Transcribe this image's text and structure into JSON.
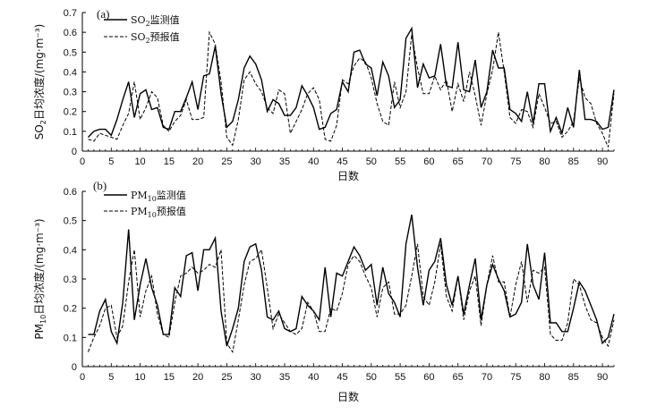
{
  "chart_data": [
    {
      "type": "line",
      "panel_label": "(a)",
      "ylabel": "SO2日均浓度/(mg·m⁻³)",
      "xlabel": "日数",
      "xlim": [
        0,
        92
      ],
      "ylim": [
        0,
        0.7
      ],
      "xticks": [
        0,
        5,
        10,
        15,
        20,
        25,
        30,
        35,
        40,
        45,
        50,
        55,
        60,
        65,
        70,
        75,
        80,
        85,
        90
      ],
      "yticks": [
        0,
        0.1,
        0.2,
        0.3,
        0.4,
        0.5,
        0.6,
        0.7
      ],
      "ytick_labels": [
        "0",
        "0.1",
        "0.2",
        "0.3",
        "0.4",
        "0.5",
        "0.6",
        "0.7"
      ],
      "legend_position": "top-left",
      "series": [
        {
          "name": "SO2监测值",
          "style": "solid",
          "color": "#000000",
          "x": [
            1,
            2,
            3,
            4,
            5,
            6,
            7,
            8,
            9,
            10,
            11,
            12,
            13,
            14,
            15,
            16,
            17,
            18,
            19,
            20,
            21,
            22,
            23,
            24,
            25,
            26,
            27,
            28,
            29,
            30,
            31,
            32,
            33,
            34,
            35,
            36,
            37,
            38,
            39,
            40,
            41,
            42,
            43,
            44,
            45,
            46,
            47,
            48,
            49,
            50,
            51,
            52,
            53,
            54,
            55,
            56,
            57,
            58,
            59,
            60,
            61,
            62,
            63,
            64,
            65,
            66,
            67,
            68,
            69,
            70,
            71,
            72,
            73,
            74,
            75,
            76,
            77,
            78,
            79,
            80,
            81,
            82,
            83,
            84,
            85,
            86,
            87,
            88,
            89,
            90,
            91,
            92
          ],
          "y": [
            0.07,
            0.1,
            0.11,
            0.11,
            0.08,
            0.16,
            0.26,
            0.35,
            0.17,
            0.29,
            0.31,
            0.21,
            0.22,
            0.12,
            0.11,
            0.2,
            0.2,
            0.27,
            0.35,
            0.21,
            0.38,
            0.39,
            0.53,
            0.29,
            0.12,
            0.15,
            0.26,
            0.42,
            0.48,
            0.44,
            0.36,
            0.2,
            0.26,
            0.24,
            0.18,
            0.18,
            0.22,
            0.33,
            0.28,
            0.22,
            0.11,
            0.12,
            0.19,
            0.21,
            0.35,
            0.3,
            0.5,
            0.51,
            0.44,
            0.42,
            0.28,
            0.45,
            0.38,
            0.22,
            0.26,
            0.57,
            0.62,
            0.32,
            0.44,
            0.37,
            0.38,
            0.54,
            0.33,
            0.32,
            0.55,
            0.31,
            0.3,
            0.46,
            0.22,
            0.3,
            0.51,
            0.42,
            0.42,
            0.21,
            0.19,
            0.15,
            0.3,
            0.14,
            0.34,
            0.34,
            0.1,
            0.17,
            0.09,
            0.22,
            0.12,
            0.41,
            0.16,
            0.16,
            0.15,
            0.11,
            0.12,
            0.31
          ]
        },
        {
          "name": "SO2预报值",
          "style": "dashed",
          "color": "#000000",
          "x": [
            1,
            2,
            3,
            4,
            5,
            6,
            7,
            8,
            9,
            10,
            11,
            12,
            13,
            14,
            15,
            16,
            17,
            18,
            19,
            20,
            21,
            22,
            23,
            24,
            25,
            26,
            27,
            28,
            29,
            30,
            31,
            32,
            33,
            34,
            35,
            36,
            37,
            38,
            39,
            40,
            41,
            42,
            43,
            44,
            45,
            46,
            47,
            48,
            49,
            50,
            51,
            52,
            53,
            54,
            55,
            56,
            57,
            58,
            59,
            60,
            61,
            62,
            63,
            64,
            65,
            66,
            67,
            68,
            69,
            70,
            71,
            72,
            73,
            74,
            75,
            76,
            77,
            78,
            79,
            80,
            81,
            82,
            83,
            84,
            85,
            86,
            87,
            88,
            89,
            90,
            91,
            92
          ],
          "y": [
            0.06,
            0.05,
            0.09,
            0.08,
            0.07,
            0.06,
            0.13,
            0.19,
            0.35,
            0.16,
            0.22,
            0.3,
            0.27,
            0.13,
            0.1,
            0.15,
            0.18,
            0.26,
            0.16,
            0.16,
            0.17,
            0.6,
            0.54,
            0.35,
            0.07,
            0.03,
            0.16,
            0.36,
            0.4,
            0.34,
            0.3,
            0.22,
            0.19,
            0.31,
            0.29,
            0.09,
            0.15,
            0.21,
            0.29,
            0.32,
            0.26,
            0.06,
            0.05,
            0.13,
            0.36,
            0.34,
            0.43,
            0.47,
            0.45,
            0.37,
            0.24,
            0.15,
            0.13,
            0.35,
            0.22,
            0.3,
            0.59,
            0.42,
            0.29,
            0.29,
            0.38,
            0.31,
            0.36,
            0.2,
            0.34,
            0.25,
            0.4,
            0.28,
            0.13,
            0.29,
            0.41,
            0.6,
            0.4,
            0.17,
            0.14,
            0.21,
            0.2,
            0.12,
            0.29,
            0.22,
            0.14,
            0.15,
            0.07,
            0.1,
            0.15,
            0.37,
            0.27,
            0.24,
            0.14,
            0.09,
            0.02,
            0.29
          ]
        }
      ]
    },
    {
      "type": "line",
      "panel_label": "(b)",
      "ylabel": "PM10日均浓度/(mg·m⁻³)",
      "xlabel": "日数",
      "xlim": [
        0,
        92
      ],
      "ylim": [
        0,
        0.6
      ],
      "xticks": [
        0,
        5,
        10,
        15,
        20,
        25,
        30,
        35,
        40,
        45,
        50,
        55,
        60,
        65,
        70,
        75,
        80,
        85,
        90
      ],
      "yticks": [
        0,
        0.1,
        0.2,
        0.3,
        0.4,
        0.5,
        0.6
      ],
      "ytick_labels": [
        "0",
        "0.1",
        "0.2",
        "0.3",
        "0.4",
        "0.5",
        "0.6"
      ],
      "legend_position": "top-left",
      "series": [
        {
          "name": "PM10监测值",
          "style": "solid",
          "color": "#000000",
          "x": [
            1,
            2,
            3,
            4,
            5,
            6,
            7,
            8,
            9,
            10,
            11,
            12,
            13,
            14,
            15,
            16,
            17,
            18,
            19,
            20,
            21,
            22,
            23,
            24,
            25,
            26,
            27,
            28,
            29,
            30,
            31,
            32,
            33,
            34,
            35,
            36,
            37,
            38,
            39,
            40,
            41,
            42,
            43,
            44,
            45,
            46,
            47,
            48,
            49,
            50,
            51,
            52,
            53,
            54,
            55,
            56,
            57,
            58,
            59,
            60,
            61,
            62,
            63,
            64,
            65,
            66,
            67,
            68,
            69,
            70,
            71,
            72,
            73,
            74,
            75,
            76,
            77,
            78,
            79,
            80,
            81,
            82,
            83,
            84,
            85,
            86,
            87,
            88,
            89,
            90,
            91,
            92
          ],
          "y": [
            0.11,
            0.11,
            0.19,
            0.23,
            0.12,
            0.08,
            0.22,
            0.47,
            0.16,
            0.28,
            0.37,
            0.27,
            0.21,
            0.11,
            0.11,
            0.27,
            0.24,
            0.38,
            0.39,
            0.26,
            0.4,
            0.4,
            0.44,
            0.19,
            0.07,
            0.13,
            0.2,
            0.36,
            0.41,
            0.42,
            0.33,
            0.17,
            0.16,
            0.19,
            0.13,
            0.12,
            0.13,
            0.24,
            0.21,
            0.19,
            0.16,
            0.34,
            0.17,
            0.32,
            0.31,
            0.36,
            0.41,
            0.38,
            0.33,
            0.35,
            0.21,
            0.34,
            0.25,
            0.22,
            0.17,
            0.42,
            0.52,
            0.34,
            0.21,
            0.33,
            0.36,
            0.44,
            0.28,
            0.21,
            0.31,
            0.18,
            0.28,
            0.37,
            0.16,
            0.28,
            0.35,
            0.3,
            0.26,
            0.17,
            0.18,
            0.22,
            0.42,
            0.28,
            0.23,
            0.39,
            0.15,
            0.15,
            0.12,
            0.12,
            0.2,
            0.29,
            0.26,
            0.21,
            0.16,
            0.08,
            0.1,
            0.18
          ]
        },
        {
          "name": "PM10预报值",
          "style": "dashed",
          "color": "#000000",
          "x": [
            1,
            2,
            3,
            4,
            5,
            6,
            7,
            8,
            9,
            10,
            11,
            12,
            13,
            14,
            15,
            16,
            17,
            18,
            19,
            20,
            21,
            22,
            23,
            24,
            25,
            26,
            27,
            28,
            29,
            30,
            31,
            32,
            33,
            34,
            35,
            36,
            37,
            38,
            39,
            40,
            41,
            42,
            43,
            44,
            45,
            46,
            47,
            48,
            49,
            50,
            51,
            52,
            53,
            54,
            55,
            56,
            57,
            58,
            59,
            60,
            61,
            62,
            63,
            64,
            65,
            66,
            67,
            68,
            69,
            70,
            71,
            72,
            73,
            74,
            75,
            76,
            77,
            78,
            79,
            80,
            81,
            82,
            83,
            84,
            85,
            86,
            87,
            88,
            89,
            90,
            91,
            92
          ],
          "y": [
            0.05,
            0.1,
            0.14,
            0.2,
            0.21,
            0.1,
            0.14,
            0.29,
            0.4,
            0.17,
            0.26,
            0.31,
            0.18,
            0.11,
            0.1,
            0.22,
            0.31,
            0.32,
            0.34,
            0.32,
            0.33,
            0.35,
            0.34,
            0.4,
            0.08,
            0.05,
            0.16,
            0.28,
            0.36,
            0.37,
            0.4,
            0.27,
            0.13,
            0.18,
            0.15,
            0.12,
            0.11,
            0.13,
            0.22,
            0.19,
            0.12,
            0.12,
            0.2,
            0.19,
            0.25,
            0.35,
            0.38,
            0.36,
            0.31,
            0.27,
            0.17,
            0.27,
            0.29,
            0.18,
            0.18,
            0.21,
            0.31,
            0.42,
            0.24,
            0.21,
            0.29,
            0.42,
            0.24,
            0.19,
            0.31,
            0.16,
            0.26,
            0.31,
            0.14,
            0.28,
            0.38,
            0.29,
            0.29,
            0.17,
            0.28,
            0.36,
            0.22,
            0.33,
            0.32,
            0.34,
            0.11,
            0.09,
            0.09,
            0.15,
            0.3,
            0.28,
            0.21,
            0.16,
            0.15,
            0.1,
            0.07,
            0.16
          ]
        }
      ]
    }
  ]
}
